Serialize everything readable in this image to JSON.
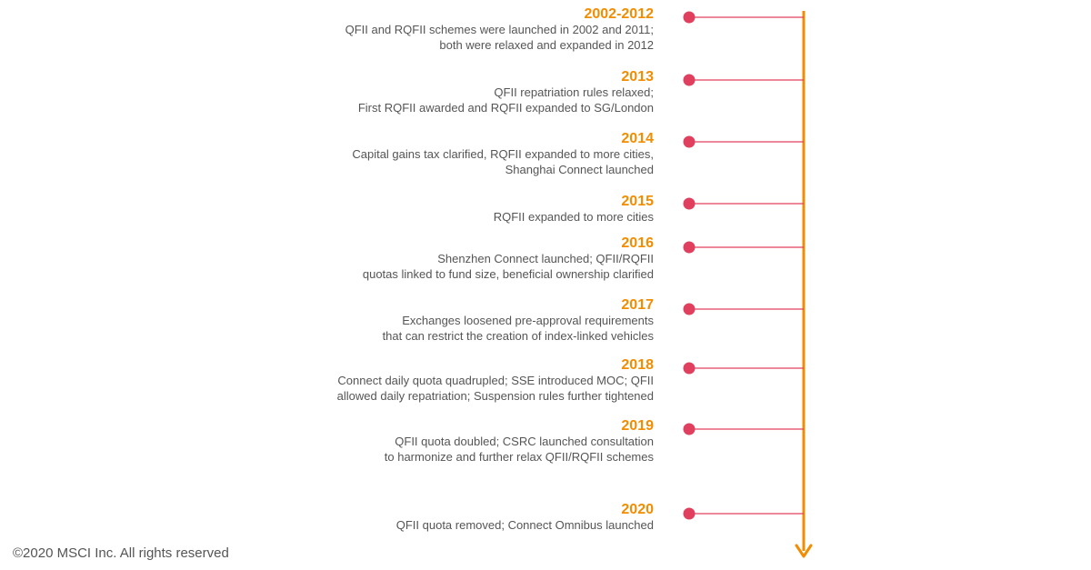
{
  "colors": {
    "accent": "#f28c00",
    "marker": "#e0405e",
    "connector": "#e0405e",
    "text": "#555555"
  },
  "timeline": {
    "events": [
      {
        "year": "2002-2012",
        "lines": [
          "QFII and RQFII schemes were launched in 2002 and 2011;",
          "both were relaxed and expanded in 2012"
        ]
      },
      {
        "year": "2013",
        "lines": [
          "QFII repatriation rules relaxed;",
          "First RQFII awarded and RQFII expanded to SG/London"
        ]
      },
      {
        "year": "2014",
        "lines": [
          "Capital gains tax clarified, RQFII expanded to more cities,",
          "Shanghai Connect launched"
        ]
      },
      {
        "year": "2015",
        "lines": [
          "RQFII expanded to more cities"
        ]
      },
      {
        "year": "2016",
        "lines": [
          "Shenzhen Connect launched; QFII/RQFII",
          "quotas linked to fund size, beneficial ownership clarified"
        ]
      },
      {
        "year": "2017",
        "lines": [
          "Exchanges loosened pre-approval requirements",
          "that can restrict the creation of index-linked vehicles"
        ]
      },
      {
        "year": "2018",
        "lines": [
          "Connect daily quota quadrupled; SSE introduced MOC; QFII",
          "allowed daily repatriation; Suspension rules further tightened"
        ]
      },
      {
        "year": "2019",
        "lines": [
          "QFII quota doubled; CSRC launched consultation",
          "to harmonize and further relax QFII/RQFII schemes"
        ]
      },
      {
        "year": "2020",
        "lines": [
          "QFII quota removed; Connect Omnibus launched"
        ]
      }
    ]
  },
  "footer": {
    "copyright": "©2020 MSCI Inc. All rights reserved"
  }
}
